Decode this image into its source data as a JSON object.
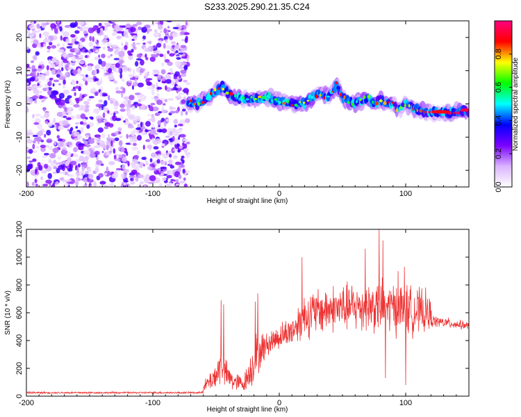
{
  "title": "S233.2025.290.21.35.C24",
  "chart_data": [
    {
      "type": "heatmap",
      "xlabel": "Height of straight line (km)",
      "ylabel": "Frequency (Hz)",
      "xlim": [
        -200,
        150
      ],
      "ylim": [
        -25,
        25
      ],
      "xticks": [
        "-200",
        "-100",
        "0",
        "100"
      ],
      "xtick_values": [
        -200,
        -100,
        0,
        100
      ],
      "yticks": [
        "-20",
        "-10",
        "0",
        "10",
        "20"
      ],
      "ytick_values": [
        -20,
        -10,
        0,
        10,
        20
      ],
      "noise_region_x": [
        -200,
        -72
      ],
      "signal_track": [
        {
          "x": -72,
          "f": 0.5
        },
        {
          "x": -65,
          "f": 0
        },
        {
          "x": -58,
          "f": 1.5
        },
        {
          "x": -50,
          "f": 4
        },
        {
          "x": -45,
          "f": 5
        },
        {
          "x": -40,
          "f": 3
        },
        {
          "x": -35,
          "f": 2
        },
        {
          "x": -30,
          "f": 1.5
        },
        {
          "x": -20,
          "f": 1.5
        },
        {
          "x": -10,
          "f": 2
        },
        {
          "x": 0,
          "f": 1
        },
        {
          "x": 10,
          "f": 0
        },
        {
          "x": 20,
          "f": 0
        },
        {
          "x": 30,
          "f": 3
        },
        {
          "x": 40,
          "f": 2
        },
        {
          "x": 45,
          "f": 6
        },
        {
          "x": 50,
          "f": 2
        },
        {
          "x": 60,
          "f": 0
        },
        {
          "x": 70,
          "f": 2
        },
        {
          "x": 75,
          "f": 0
        },
        {
          "x": 80,
          "f": 1
        },
        {
          "x": 90,
          "f": 0
        },
        {
          "x": 95,
          "f": -2
        },
        {
          "x": 100,
          "f": 0
        },
        {
          "x": 105,
          "f": -1
        },
        {
          "x": 115,
          "f": -2.5
        },
        {
          "x": 130,
          "f": -2.5
        },
        {
          "x": 150,
          "f": -2
        }
      ],
      "colorbar": {
        "label": "Normalized spectral amplitude",
        "range": [
          0,
          1
        ],
        "ticks": [
          "0.0",
          "0.2",
          "0.4",
          "0.6",
          "0.8"
        ],
        "tick_values": [
          0,
          0.2,
          0.4,
          0.6,
          0.8
        ],
        "colors": [
          "#ffffff",
          "#d9b3ff",
          "#7b00ff",
          "#0000ff",
          "#00ffff",
          "#00ff00",
          "#ffff00",
          "#ff0000",
          "#ff0080"
        ]
      }
    },
    {
      "type": "line",
      "xlabel": "Height of straight line (km)",
      "ylabel": "SNR (10 * v/v)",
      "xlim": [
        -200,
        150
      ],
      "ylim": [
        0,
        1200
      ],
      "xticks": [
        "-200",
        "-100",
        "0",
        "100"
      ],
      "xtick_values": [
        -200,
        -100,
        0,
        100
      ],
      "yticks": [
        "0",
        "200",
        "400",
        "600",
        "800",
        "1000",
        "1200"
      ],
      "ytick_values": [
        0,
        200,
        400,
        600,
        800,
        1000,
        1200
      ],
      "series_color": "#ee3333",
      "envelope": [
        {
          "x": -200,
          "base": 25,
          "amp": 8
        },
        {
          "x": -62,
          "base": 25,
          "amp": 8
        },
        {
          "x": -58,
          "base": 80,
          "amp": 60
        },
        {
          "x": -50,
          "base": 150,
          "amp": 120
        },
        {
          "x": -45,
          "base": 250,
          "amp": 200
        },
        {
          "x": -42,
          "base": 150,
          "amp": 120
        },
        {
          "x": -35,
          "base": 100,
          "amp": 80
        },
        {
          "x": -28,
          "base": 90,
          "amp": 70
        },
        {
          "x": -22,
          "base": 200,
          "amp": 160
        },
        {
          "x": -18,
          "base": 300,
          "amp": 200
        },
        {
          "x": -10,
          "base": 370,
          "amp": 100
        },
        {
          "x": 0,
          "base": 430,
          "amp": 110
        },
        {
          "x": 10,
          "base": 470,
          "amp": 130
        },
        {
          "x": 20,
          "base": 580,
          "amp": 200
        },
        {
          "x": 40,
          "base": 630,
          "amp": 200
        },
        {
          "x": 60,
          "base": 640,
          "amp": 210
        },
        {
          "x": 80,
          "base": 650,
          "amp": 230
        },
        {
          "x": 100,
          "base": 620,
          "amp": 220
        },
        {
          "x": 118,
          "base": 600,
          "amp": 180
        },
        {
          "x": 122,
          "base": 540,
          "amp": 50
        },
        {
          "x": 150,
          "base": 505,
          "amp": 35
        }
      ],
      "spikes": [
        {
          "x": -46,
          "y": 690
        },
        {
          "x": -44,
          "y": 660
        },
        {
          "x": -17,
          "y": 740
        },
        {
          "x": -19,
          "y": 680
        },
        {
          "x": 18,
          "y": 1000
        },
        {
          "x": 68,
          "y": 1060
        },
        {
          "x": 79,
          "y": 1200
        },
        {
          "x": 82,
          "y": 1120
        },
        {
          "x": 94,
          "y": 900
        },
        {
          "x": 99,
          "y": 930
        },
        {
          "x": 84,
          "y": 130
        },
        {
          "x": 100,
          "y": 80
        }
      ]
    }
  ]
}
